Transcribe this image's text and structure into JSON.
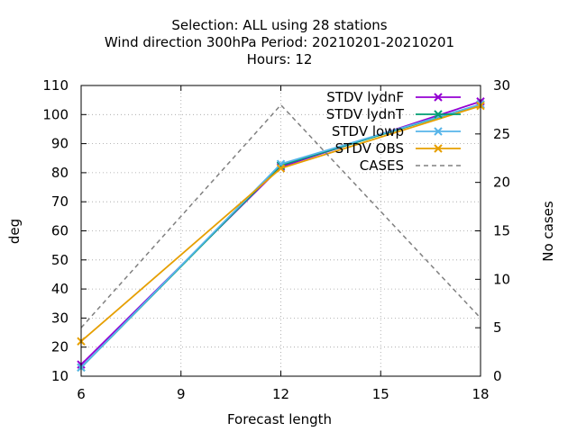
{
  "chart_data": {
    "type": "line",
    "title_lines": [
      "Selection: ALL using    28 stations",
      "Wind direction 300hPa   Period: 20210201-20210201",
      "Hours:  12"
    ],
    "xlabel": "Forecast length",
    "ylabel": "deg",
    "y2label": "No cases",
    "x": [
      6,
      12,
      18
    ],
    "xlim": [
      6,
      18
    ],
    "xticks": [
      "6",
      "9",
      "12",
      "15",
      "18"
    ],
    "xtick_values": [
      6,
      9,
      12,
      15,
      18
    ],
    "ylim": [
      10,
      110
    ],
    "yticks": [
      "10",
      "20",
      "30",
      "40",
      "50",
      "60",
      "70",
      "80",
      "90",
      "100",
      "110"
    ],
    "ytick_values": [
      10,
      20,
      30,
      40,
      50,
      60,
      70,
      80,
      90,
      100,
      110
    ],
    "y2lim": [
      0,
      30
    ],
    "y2ticks": [
      "0",
      "5",
      "10",
      "15",
      "20",
      "25",
      "30"
    ],
    "y2tick_values": [
      0,
      5,
      10,
      15,
      20,
      25,
      30
    ],
    "grid": true,
    "legend_position": "top-right",
    "series": [
      {
        "name": "STDV lydnF",
        "color": "#9400d3",
        "axis": "y",
        "style": "solid",
        "marker": "x",
        "values": [
          14,
          82,
          104.5
        ]
      },
      {
        "name": "STDV lydnT",
        "color": "#009e73",
        "axis": "y",
        "style": "solid",
        "marker": "x",
        "values": [
          13,
          82.5,
          103.5
        ]
      },
      {
        "name": "STDV lowp",
        "color": "#56b4e9",
        "axis": "y",
        "style": "solid",
        "marker": "x",
        "values": [
          13,
          83,
          103.5
        ]
      },
      {
        "name": "STDV OBS",
        "color": "#e69f00",
        "axis": "y",
        "style": "solid",
        "marker": "x",
        "values": [
          22,
          81.5,
          103
        ]
      },
      {
        "name": "CASES",
        "color": "#808080",
        "axis": "y2",
        "style": "dashed",
        "marker": "none",
        "values": [
          5,
          28,
          6
        ]
      }
    ]
  }
}
